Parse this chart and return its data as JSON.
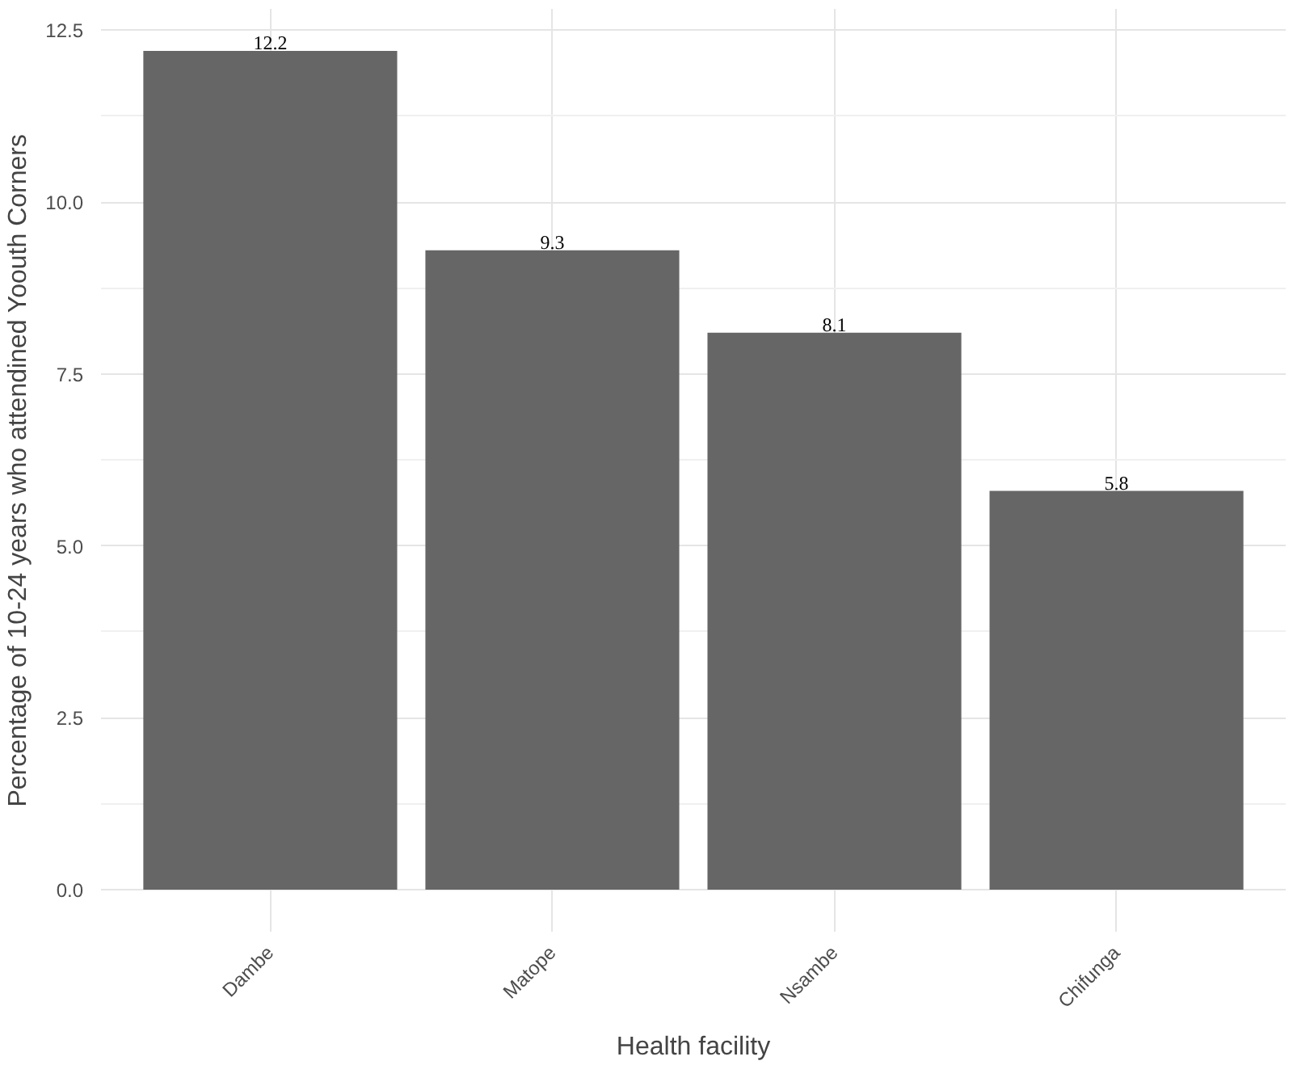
{
  "chart_data": {
    "type": "bar",
    "xlabel": "Health facility",
    "ylabel": "Percentage of 10-24 years who attendined Yoouth Corners",
    "categories": [
      "Dambe",
      "Matope",
      "Nsambe",
      "Chifunga"
    ],
    "values": [
      12.2,
      9.3,
      8.1,
      5.8
    ],
    "color": "#666666",
    "ylim": [
      -0.61,
      12.81
    ],
    "yticks": [
      {
        "value": 0,
        "label": "0.0"
      },
      {
        "value": 2.5,
        "label": "2.5"
      },
      {
        "value": 5,
        "label": "5.0"
      },
      {
        "value": 7.5,
        "label": "7.5"
      },
      {
        "value": 10,
        "label": "10.0"
      },
      {
        "value": 12.5,
        "label": "12.5"
      }
    ],
    "grid": true,
    "data_labels": true
  }
}
